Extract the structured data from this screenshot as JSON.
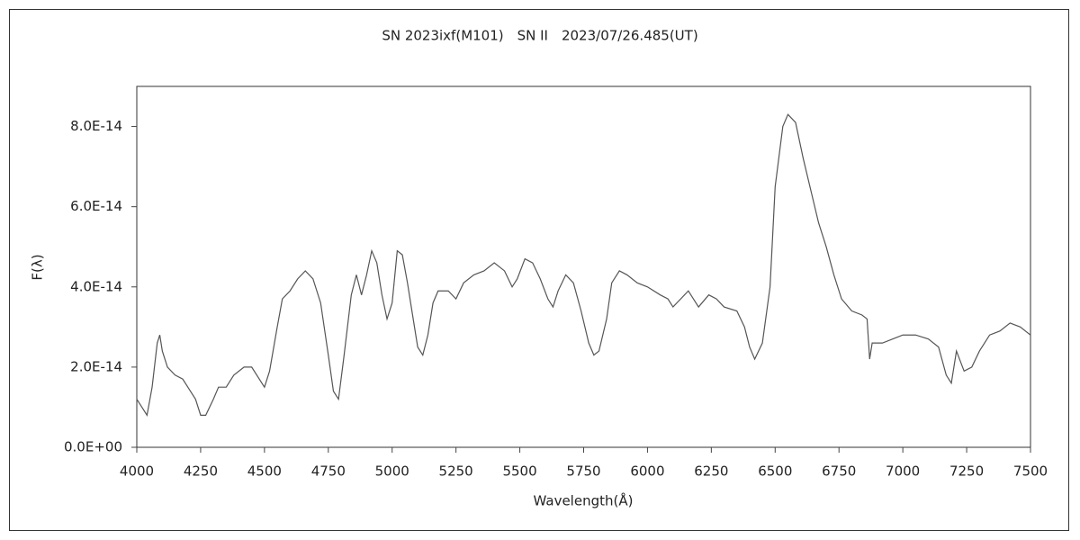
{
  "chart_data": {
    "type": "line",
    "title": "SN 2023ixf(M101)　SN II　2023/07/26.485(UT)",
    "x_label": "Wavelength(Å)",
    "y_label": "F(λ)",
    "color": "#555555",
    "xlim": [
      4000,
      7500
    ],
    "xticks": [
      4000,
      4250,
      4500,
      4750,
      5000,
      5250,
      5500,
      5750,
      6000,
      6250,
      6500,
      6750,
      7000,
      7250,
      7500
    ],
    "ylim": [
      0,
      9e-14
    ],
    "yticks": [
      {
        "value": 0,
        "label": "0.0E+00"
      },
      {
        "value": 2e-14,
        "label": "2.0E-14"
      },
      {
        "value": 4e-14,
        "label": "4.0E-14"
      },
      {
        "value": 6e-14,
        "label": "6.0E-14"
      },
      {
        "value": 8e-14,
        "label": "8.0E-14"
      }
    ],
    "grid": false,
    "x": [
      4000,
      4020,
      4040,
      4060,
      4080,
      4090,
      4100,
      4120,
      4150,
      4180,
      4200,
      4230,
      4250,
      4270,
      4300,
      4320,
      4350,
      4380,
      4420,
      4450,
      4480,
      4500,
      4520,
      4550,
      4570,
      4600,
      4630,
      4660,
      4690,
      4720,
      4750,
      4770,
      4790,
      4810,
      4840,
      4860,
      4880,
      4900,
      4920,
      4940,
      4960,
      4980,
      5000,
      5020,
      5040,
      5060,
      5080,
      5100,
      5120,
      5140,
      5160,
      5180,
      5220,
      5250,
      5280,
      5320,
      5360,
      5400,
      5440,
      5470,
      5490,
      5520,
      5550,
      5580,
      5610,
      5630,
      5650,
      5680,
      5710,
      5740,
      5770,
      5790,
      5810,
      5840,
      5860,
      5890,
      5920,
      5960,
      6000,
      6050,
      6080,
      6100,
      6130,
      6160,
      6180,
      6200,
      6240,
      6270,
      6300,
      6350,
      6380,
      6400,
      6420,
      6450,
      6480,
      6500,
      6530,
      6550,
      6580,
      6610,
      6640,
      6670,
      6700,
      6730,
      6760,
      6800,
      6840,
      6860,
      6870,
      6880,
      6920,
      6960,
      7000,
      7050,
      7100,
      7140,
      7170,
      7190,
      7210,
      7240,
      7270,
      7300,
      7340,
      7380,
      7420,
      7460,
      7500
    ],
    "values": [
      1.2e-14,
      1e-14,
      8e-15,
      1.5e-14,
      2.6e-14,
      2.8e-14,
      2.4e-14,
      2e-14,
      1.8e-14,
      1.7e-14,
      1.5e-14,
      1.2e-14,
      8e-15,
      8e-15,
      1.2e-14,
      1.5e-14,
      1.5e-14,
      1.8e-14,
      2e-14,
      2e-14,
      1.7e-14,
      1.5e-14,
      1.9e-14,
      3e-14,
      3.7e-14,
      3.9e-14,
      4.2e-14,
      4.4e-14,
      4.2e-14,
      3.6e-14,
      2.3e-14,
      1.4e-14,
      1.2e-14,
      2.2e-14,
      3.8e-14,
      4.3e-14,
      3.8e-14,
      4.3e-14,
      4.9e-14,
      4.6e-14,
      3.8e-14,
      3.2e-14,
      3.6e-14,
      4.9e-14,
      4.8e-14,
      4.1e-14,
      3.3e-14,
      2.5e-14,
      2.3e-14,
      2.8e-14,
      3.6e-14,
      3.9e-14,
      3.9e-14,
      3.7e-14,
      4.1e-14,
      4.3e-14,
      4.4e-14,
      4.6e-14,
      4.4e-14,
      4e-14,
      4.2e-14,
      4.7e-14,
      4.6e-14,
      4.2e-14,
      3.7e-14,
      3.5e-14,
      3.9e-14,
      4.3e-14,
      4.1e-14,
      3.4e-14,
      2.6e-14,
      2.3e-14,
      2.4e-14,
      3.2e-14,
      4.1e-14,
      4.4e-14,
      4.3e-14,
      4.1e-14,
      4e-14,
      3.8e-14,
      3.7e-14,
      3.5e-14,
      3.7e-14,
      3.9e-14,
      3.7e-14,
      3.5e-14,
      3.8e-14,
      3.7e-14,
      3.5e-14,
      3.4e-14,
      3e-14,
      2.5e-14,
      2.2e-14,
      2.6e-14,
      4e-14,
      6.5e-14,
      8e-14,
      8.3e-14,
      8.1e-14,
      7.2e-14,
      6.4e-14,
      5.6e-14,
      5e-14,
      4.3e-14,
      3.7e-14,
      3.4e-14,
      3.3e-14,
      3.2e-14,
      2.2e-14,
      2.6e-14,
      2.6e-14,
      2.7e-14,
      2.8e-14,
      2.8e-14,
      2.7e-14,
      2.5e-14,
      1.8e-14,
      1.6e-14,
      2.4e-14,
      1.9e-14,
      2e-14,
      2.4e-14,
      2.8e-14,
      2.9e-14,
      3.1e-14,
      3e-14,
      2.8e-14
    ]
  }
}
